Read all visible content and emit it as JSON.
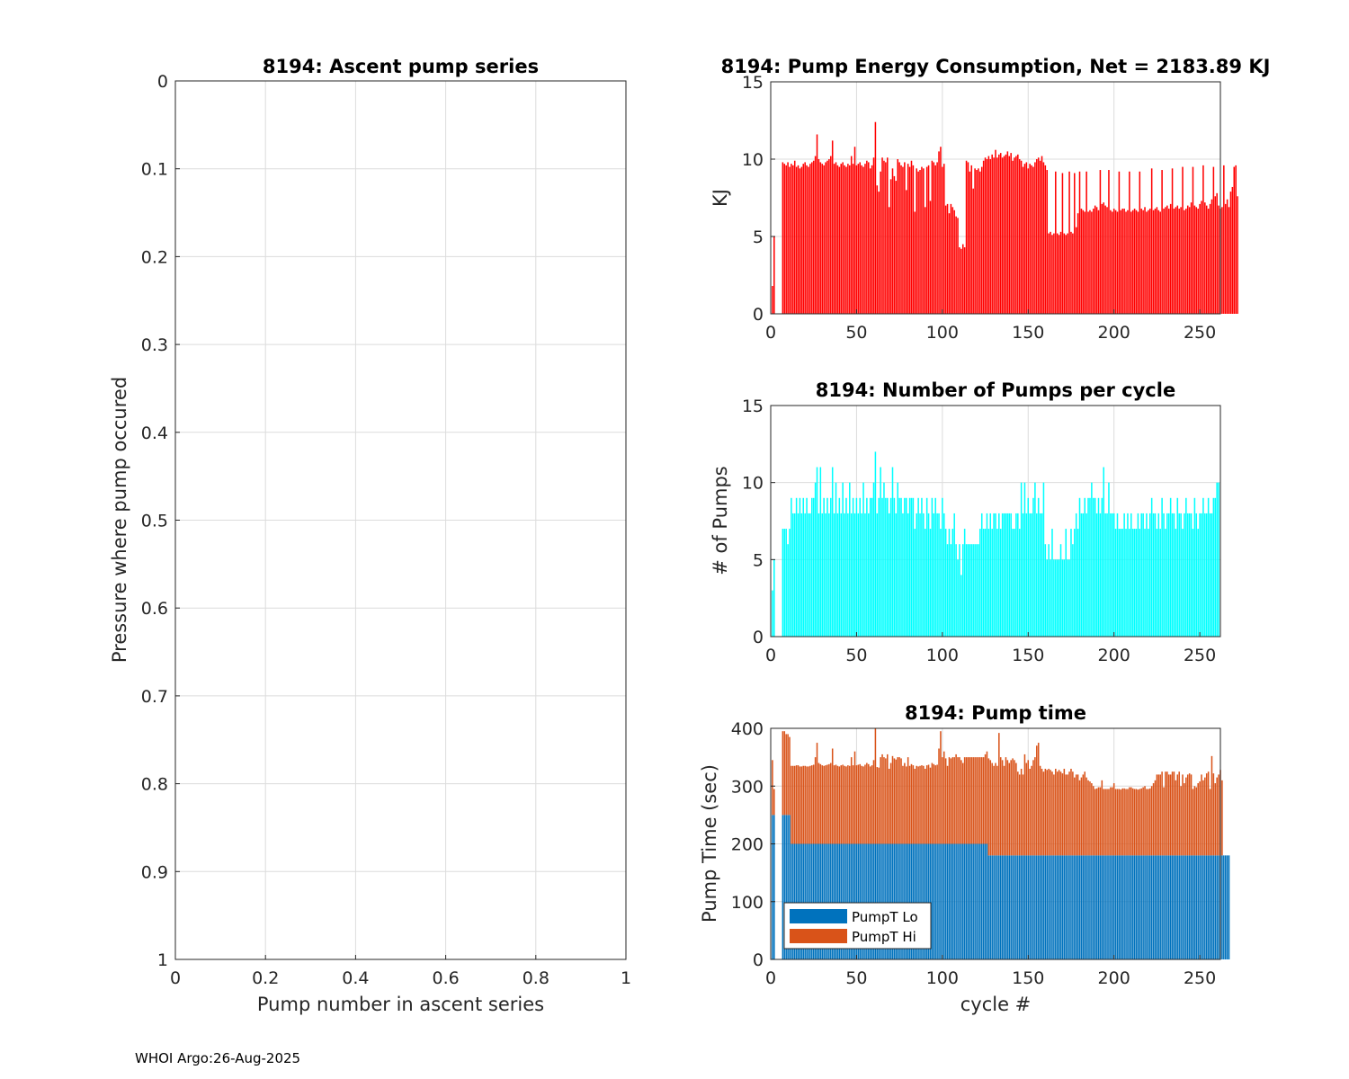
{
  "footer": "WHOI Argo:26-Aug-2025",
  "colors": {
    "energy": "#ff0000",
    "pumps": "#00ffff",
    "pump_lo": "#0072bd",
    "pump_hi": "#d95319",
    "grid": "#dcdcdc",
    "axis": "#262626"
  },
  "chart_data": [
    {
      "id": "ascent",
      "type": "scatter",
      "title": "8194: Ascent pump series",
      "xlabel": "Pump number in ascent series",
      "ylabel": "Pressure where pump occured",
      "xlim": [
        0,
        1
      ],
      "ylim": [
        0,
        1
      ],
      "y_reversed": true,
      "xticks": [
        0,
        0.2,
        0.4,
        0.6,
        0.8,
        1
      ],
      "xtick_labels": [
        "0",
        "0.2",
        "0.4",
        "0.6",
        "0.8",
        "1"
      ],
      "yticks": [
        0,
        0.1,
        0.2,
        0.3,
        0.4,
        0.5,
        0.6,
        0.7,
        0.8,
        0.9,
        1
      ],
      "ytick_labels": [
        "0",
        "0.1",
        "0.2",
        "0.3",
        "0.4",
        "0.5",
        "0.6",
        "0.7",
        "0.8",
        "0.9",
        "1"
      ],
      "grid": true,
      "points": []
    },
    {
      "id": "energy",
      "type": "bar",
      "title": "8194: Pump Energy Consumption,  Net = 2183.89 KJ",
      "xlabel": "",
      "ylabel": "KJ",
      "xlim": [
        0,
        262
      ],
      "ylim": [
        0,
        15
      ],
      "xticks": [
        0,
        50,
        100,
        150,
        200,
        250
      ],
      "xtick_labels": [
        "0",
        "50",
        "100",
        "150",
        "200",
        "250"
      ],
      "yticks": [
        0,
        5,
        10,
        15
      ],
      "ytick_labels": [
        "0",
        "5",
        "10",
        "15"
      ],
      "grid": true,
      "x_start": 1,
      "values": [
        1.8,
        5,
        0,
        0,
        0,
        0,
        9.8,
        9.7,
        9.6,
        9.8,
        9.5,
        9.7,
        9.6,
        9.9,
        9.5,
        9.6,
        9.4,
        9.5,
        9.7,
        9.8,
        9.6,
        9.5,
        9.7,
        9.8,
        9.9,
        10.2,
        11.6,
        10,
        9.8,
        9.7,
        9.6,
        9.8,
        9.9,
        10,
        10.2,
        11.2,
        9.7,
        9.8,
        9.6,
        9.5,
        9.7,
        9.8,
        9.6,
        9.5,
        9.7,
        9.6,
        10.2,
        9.7,
        10.8,
        9.6,
        9.7,
        9.8,
        9.6,
        9.5,
        9.7,
        9.9,
        9.8,
        9.4,
        9.6,
        10.1,
        12.4,
        8.3,
        7.9,
        9.2,
        10.1,
        9.9,
        9.8,
        10.1,
        6.9,
        8.7,
        9.4,
        8.9,
        8.6,
        10,
        9.8,
        9.6,
        9.5,
        9.8,
        8,
        9.7,
        9.5,
        9.9,
        9.6,
        6.6,
        9.4,
        9.2,
        9.3,
        9.5,
        9.4,
        6.9,
        9.5,
        9.6,
        7.3,
        9.9,
        9.8,
        9.6,
        9.8,
        10.5,
        10.8,
        9.5,
        9.7,
        7,
        7.1,
        6.5,
        7.1,
        6.9,
        6.7,
        6.3,
        6.2,
        4.3,
        4.2,
        4.5,
        4.3,
        9.9,
        9.8,
        9.2,
        9.6,
        8.1,
        9.4,
        9.3,
        9.4,
        9.2,
        9.5,
        9.9,
        10.1,
        10,
        10.2,
        10,
        10.3,
        10.1,
        10.6,
        10.1,
        10.3,
        10.4,
        10.1,
        10.2,
        10.3,
        10.5,
        10.2,
        10.4,
        9.9,
        10.1,
        10.2,
        10.3,
        10,
        9.9,
        9.5,
        9.7,
        9.8,
        9.4,
        9.7,
        9.6,
        9.5,
        9.8,
        10,
        10.1,
        9.9,
        10.2,
        9.8,
        9.6,
        9.3,
        5.2,
        5.3,
        5.1,
        5.2,
        9.2,
        5.2,
        5.1,
        5.3,
        9.1,
        5.2,
        5.1,
        5.2,
        9.2,
        5.3,
        5.2,
        9.1,
        5.6,
        6.5,
        9.2,
        6.8,
        6.7,
        6.6,
        9.2,
        6.6,
        6.7,
        6.6,
        6.8,
        7,
        6.9,
        6.7,
        9.3,
        7.1,
        7.2,
        7,
        6.9,
        9.3,
        6.7,
        6.6,
        6.8,
        6.7,
        6.6,
        9.2,
        6.7,
        6.8,
        6.8,
        6.6,
        6.7,
        9.2,
        6.6,
        6.7,
        6.8,
        6.7,
        6.6,
        9.2,
        6.8,
        6.7,
        6.9,
        6.6,
        6.7,
        6.8,
        9.4,
        6.7,
        6.8,
        6.9,
        6.7,
        6.6,
        9.3,
        6.8,
        6.9,
        7,
        6.8,
        7.1,
        9.4,
        6.8,
        6.9,
        7,
        6.8,
        6.9,
        9.5,
        6.7,
        6.8,
        7,
        6.9,
        7.2,
        9.5,
        7,
        6.9,
        6.8,
        7.1,
        7.3,
        9.6,
        7.2,
        7,
        6.8,
        7.1,
        7.4,
        9.5,
        7.6,
        7.8,
        7,
        6.8,
        6.9,
        9.6,
        7.1,
        7.4,
        6.9,
        7.9,
        8.2,
        9.5,
        9.6,
        7.6
      ]
    },
    {
      "id": "pumps",
      "type": "bar",
      "title": "8194: Number of Pumps per cycle",
      "xlabel": "",
      "ylabel": "# of Pumps",
      "xlim": [
        0,
        262
      ],
      "ylim": [
        0,
        15
      ],
      "xticks": [
        0,
        50,
        100,
        150,
        200,
        250
      ],
      "xtick_labels": [
        "0",
        "50",
        "100",
        "150",
        "200",
        "250"
      ],
      "yticks": [
        0,
        5,
        10,
        15
      ],
      "ytick_labels": [
        "0",
        "5",
        "10",
        "15"
      ],
      "grid": true,
      "x_start": 1,
      "values": [
        3,
        5,
        0,
        0,
        0,
        0,
        7,
        7,
        7,
        6,
        7,
        9,
        8,
        8,
        9,
        8,
        9,
        8,
        9,
        8,
        9,
        8,
        8,
        9,
        9,
        10,
        11,
        8,
        11,
        8,
        9,
        8,
        9,
        8,
        9,
        11,
        8,
        10,
        8,
        9,
        8,
        10,
        8,
        9,
        8,
        10,
        8,
        9,
        8,
        9,
        8,
        9,
        8,
        10,
        8,
        9,
        8,
        9,
        9,
        10,
        12,
        8,
        9,
        11,
        9,
        10,
        9,
        9,
        8,
        9,
        11,
        9,
        8,
        10,
        9,
        9,
        8,
        9,
        9,
        8,
        9,
        9,
        9,
        7,
        8,
        9,
        8,
        9,
        8,
        7,
        9,
        8,
        7,
        9,
        8,
        9,
        8,
        8,
        7,
        9,
        8,
        7,
        6,
        7,
        6,
        7,
        8,
        6,
        5,
        6,
        4,
        6,
        7,
        6,
        6,
        6,
        6,
        6,
        6,
        6,
        6,
        7,
        8,
        7,
        7,
        8,
        7,
        8,
        7,
        8,
        8,
        7,
        8,
        7,
        8,
        8,
        8,
        8,
        8,
        8,
        7,
        7,
        8,
        8,
        7,
        10,
        8,
        10,
        8,
        9,
        8,
        8,
        9,
        10,
        8,
        9,
        8,
        8,
        10,
        6,
        5,
        6,
        5,
        7,
        5,
        5,
        5,
        5,
        6,
        5,
        5,
        7,
        5,
        5,
        7,
        6,
        7,
        8,
        7,
        9,
        8,
        8,
        9,
        8,
        9,
        9,
        10,
        9,
        9,
        8,
        9,
        8,
        9,
        11,
        8,
        8,
        10,
        8,
        8,
        8,
        7,
        8,
        7,
        7,
        7,
        8,
        7,
        8,
        7,
        8,
        7,
        7,
        7,
        8,
        7,
        8,
        8,
        7,
        8,
        7,
        8,
        9,
        8,
        8,
        7,
        8,
        7,
        9,
        8,
        7,
        8,
        8,
        9,
        8,
        8,
        7,
        9,
        8,
        8,
        7,
        8,
        9,
        8,
        8,
        8,
        7,
        9,
        8,
        7,
        8,
        8,
        9,
        8,
        8,
        9,
        8,
        8,
        9,
        9,
        10,
        10
      ]
    },
    {
      "id": "pumptime",
      "type": "bar",
      "stacked": true,
      "title": "8194: Pump time",
      "xlabel": "cycle #",
      "ylabel": "Pump Time (sec)",
      "xlim": [
        0,
        262
      ],
      "ylim": [
        0,
        400
      ],
      "xticks": [
        0,
        50,
        100,
        150,
        200,
        250
      ],
      "xtick_labels": [
        "0",
        "50",
        "100",
        "150",
        "200",
        "250"
      ],
      "yticks": [
        0,
        100,
        200,
        300,
        400
      ],
      "ytick_labels": [
        "0",
        "100",
        "200",
        "300",
        "400"
      ],
      "grid": true,
      "legend": [
        "PumpT Lo",
        "PumpT Hi"
      ],
      "legend_position": "bottom-left",
      "x_start": 1,
      "series": [
        {
          "name": "PumpT Lo",
          "values": [
            250,
            250,
            0,
            0,
            0,
            0,
            250,
            250,
            250,
            250,
            250,
            200,
            200,
            200,
            200,
            200,
            200,
            200,
            200,
            200,
            200,
            200,
            200,
            200,
            200,
            200,
            200,
            200,
            200,
            200,
            200,
            200,
            200,
            200,
            200,
            200,
            200,
            200,
            200,
            200,
            200,
            200,
            200,
            200,
            200,
            200,
            200,
            200,
            200,
            200,
            200,
            200,
            200,
            200,
            200,
            200,
            200,
            200,
            200,
            200,
            200,
            200,
            200,
            200,
            200,
            200,
            200,
            200,
            200,
            200,
            200,
            200,
            200,
            200,
            200,
            200,
            200,
            200,
            200,
            200,
            200,
            200,
            200,
            200,
            200,
            200,
            200,
            200,
            200,
            200,
            200,
            200,
            200,
            200,
            200,
            200,
            200,
            200,
            200,
            200,
            200,
            200,
            200,
            200,
            200,
            200,
            200,
            200,
            200,
            200,
            200,
            200,
            200,
            200,
            200,
            200,
            200,
            200,
            200,
            200,
            200,
            200,
            200,
            200,
            200,
            200,
            180,
            180,
            180,
            180,
            180,
            180,
            180,
            180,
            180,
            180,
            180,
            180,
            180,
            180,
            180,
            180,
            180,
            180,
            180,
            180,
            180,
            180,
            180,
            180,
            180,
            180,
            180,
            180,
            180,
            180,
            180,
            180,
            180,
            180,
            180,
            180,
            180,
            180,
            180,
            180,
            180,
            180,
            180,
            180,
            180,
            180,
            180,
            180,
            180,
            180,
            180,
            180,
            180,
            180,
            180,
            180,
            180,
            180,
            180,
            180,
            180,
            180,
            180,
            180,
            180,
            180,
            180,
            180,
            180,
            180,
            180,
            180,
            180,
            180,
            180,
            180,
            180,
            180,
            180,
            180,
            180,
            180,
            180,
            180,
            180,
            180,
            180,
            180,
            180,
            180,
            180,
            180,
            180,
            180,
            180,
            180,
            180,
            180,
            180,
            180,
            180,
            180,
            180,
            180,
            180,
            180,
            180,
            180,
            180,
            180,
            180,
            180,
            180,
            180,
            180,
            180,
            180,
            180,
            180,
            180,
            180,
            180,
            180,
            180,
            180,
            180,
            180,
            180,
            180,
            180,
            180,
            180,
            180,
            180,
            180,
            180,
            180,
            180,
            180,
            180,
            180
          ]
        },
        {
          "name": "PumpT Hi",
          "values": [
            95,
            45,
            0,
            0,
            0,
            0,
            145,
            145,
            140,
            140,
            135,
            135,
            135,
            135,
            136,
            136,
            134,
            134,
            135,
            135,
            134,
            134,
            135,
            136,
            137,
            150,
            175,
            140,
            138,
            136,
            135,
            136,
            137,
            138,
            140,
            165,
            136,
            137,
            135,
            134,
            136,
            137,
            135,
            134,
            136,
            135,
            150,
            136,
            160,
            136,
            137,
            138,
            135,
            134,
            137,
            140,
            138,
            134,
            136,
            145,
            200,
            133,
            132,
            150,
            155,
            150,
            148,
            155,
            130,
            140,
            152,
            148,
            146,
            150,
            150,
            148,
            135,
            140,
            134,
            150,
            135,
            138,
            136,
            130,
            135,
            134,
            135,
            136,
            135,
            130,
            136,
            137,
            132,
            140,
            138,
            136,
            137,
            165,
            195,
            150,
            160,
            148,
            135,
            150,
            148,
            150,
            150,
            155,
            150,
            150,
            145,
            140,
            150,
            150,
            150,
            150,
            150,
            150,
            150,
            150,
            150,
            150,
            150,
            150,
            155,
            160,
            168,
            165,
            160,
            155,
            160,
            155,
            212,
            170,
            165,
            155,
            170,
            165,
            160,
            165,
            168,
            165,
            160,
            145,
            140,
            150,
            140,
            175,
            160,
            165,
            150,
            155,
            165,
            170,
            190,
            195,
            155,
            150,
            145,
            150,
            148,
            150,
            148,
            145,
            140,
            150,
            145,
            148,
            145,
            142,
            150,
            140,
            140,
            145,
            150,
            145,
            135,
            140,
            140,
            130,
            135,
            140,
            145,
            135,
            130,
            128,
            125,
            120,
            115,
            116,
            118,
            118,
            130,
            115,
            115,
            115,
            115,
            118,
            118,
            125,
            115,
            115,
            115,
            114,
            116,
            116,
            115,
            115,
            118,
            118,
            116,
            115,
            115,
            114,
            115,
            116,
            118,
            120,
            115,
            115,
            116,
            120,
            125,
            130,
            140,
            140,
            140,
            145,
            118,
            145,
            145,
            140,
            140,
            145,
            145,
            130,
            140,
            145,
            120,
            140,
            125,
            135,
            140,
            142,
            140,
            115,
            120,
            118,
            125,
            128,
            140,
            130,
            135,
            142,
            145,
            115,
            172,
            142,
            125,
            135,
            140,
            148,
            130
          ]
        }
      ]
    }
  ]
}
